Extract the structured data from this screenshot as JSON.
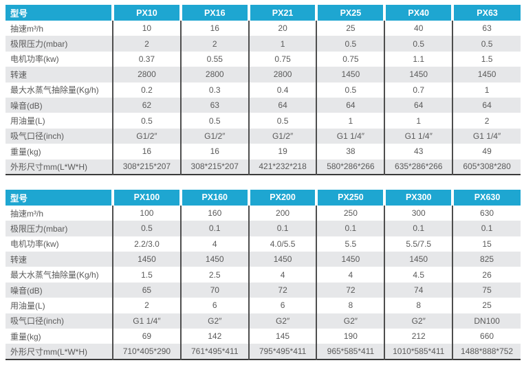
{
  "colors": {
    "accent": "#1ea6d1",
    "alt_row": "#e6e7e9",
    "divider": "#4d4d4d",
    "table_bottom_border": "#3a3a3a",
    "body_text": "#595959",
    "header_text": "#ffffff",
    "page_background": "#ffffff"
  },
  "tables": [
    {
      "name": "pump-spec-table-small-models",
      "header_label": "型号",
      "columns": [
        "PX10",
        "PX16",
        "PX21",
        "PX25",
        "PX40",
        "PX63"
      ],
      "rows": [
        {
          "label": "抽速m³/h",
          "values": [
            "10",
            "16",
            "20",
            "25",
            "40",
            "63"
          ]
        },
        {
          "label": "极限压力(mbar)",
          "values": [
            "2",
            "2",
            "1",
            "0.5",
            "0.5",
            "0.5"
          ]
        },
        {
          "label": "电机功率(kw)",
          "values": [
            "0.37",
            "0.55",
            "0.75",
            "0.75",
            "1.1",
            "1.5"
          ]
        },
        {
          "label": "转速",
          "values": [
            "2800",
            "2800",
            "2800",
            "1450",
            "1450",
            "1450"
          ]
        },
        {
          "label": "最大水蒸气抽除量(Kg/h)",
          "values": [
            "0.2",
            "0.3",
            "0.4",
            "0.5",
            "0.7",
            "1"
          ]
        },
        {
          "label": "噪音(dB)",
          "values": [
            "62",
            "63",
            "64",
            "64",
            "64",
            "64"
          ]
        },
        {
          "label": "用油量(L)",
          "values": [
            "0.5",
            "0.5",
            "0.5",
            "1",
            "1",
            "2"
          ]
        },
        {
          "label": "吸气口径(inch)",
          "values": [
            "G1/2″",
            "G1/2″",
            "G1/2″",
            "G1 1/4″",
            "G1 1/4″",
            "G1 1/4″"
          ]
        },
        {
          "label": "重量(kg)",
          "values": [
            "16",
            "16",
            "19",
            "38",
            "43",
            "49"
          ]
        },
        {
          "label": "外形尺寸mm(L*W*H)",
          "values": [
            "308*215*207",
            "308*215*207",
            "421*232*218",
            "580*286*266",
            "635*286*266",
            "605*308*280"
          ]
        }
      ]
    },
    {
      "name": "pump-spec-table-large-models",
      "header_label": "型号",
      "columns": [
        "PX100",
        "PX160",
        "PX200",
        "PX250",
        "PX300",
        "PX630"
      ],
      "rows": [
        {
          "label": "抽速m³/h",
          "values": [
            "100",
            "160",
            "200",
            "250",
            "300",
            "630"
          ]
        },
        {
          "label": "极限压力(mbar)",
          "values": [
            "0.5",
            "0.1",
            "0.1",
            "0.1",
            "0.1",
            "0.1"
          ]
        },
        {
          "label": "电机功率(kw)",
          "values": [
            "2.2/3.0",
            "4",
            "4.0/5.5",
            "5.5",
            "5.5/7.5",
            "15"
          ]
        },
        {
          "label": "转速",
          "values": [
            "1450",
            "1450",
            "1450",
            "1450",
            "1450",
            "825"
          ]
        },
        {
          "label": "最大水蒸气抽除量(Kg/h)",
          "values": [
            "1.5",
            "2.5",
            "4",
            "4",
            "4.5",
            "26"
          ]
        },
        {
          "label": "噪音(dB)",
          "values": [
            "65",
            "70",
            "72",
            "72",
            "74",
            "75"
          ]
        },
        {
          "label": "用油量(L)",
          "values": [
            "2",
            "6",
            "6",
            "8",
            "8",
            "25"
          ]
        },
        {
          "label": "吸气口径(inch)",
          "values": [
            "G1 1/4″",
            "G2″",
            "G2″",
            "G2″",
            "G2″",
            "DN100"
          ]
        },
        {
          "label": "重量(kg)",
          "values": [
            "69",
            "142",
            "145",
            "190",
            "212",
            "660"
          ]
        },
        {
          "label": "外形尺寸mm(L*W*H)",
          "values": [
            "710*405*290",
            "761*495*411",
            "795*495*411",
            "965*585*411",
            "1010*585*411",
            "1488*888*752"
          ]
        }
      ]
    }
  ]
}
